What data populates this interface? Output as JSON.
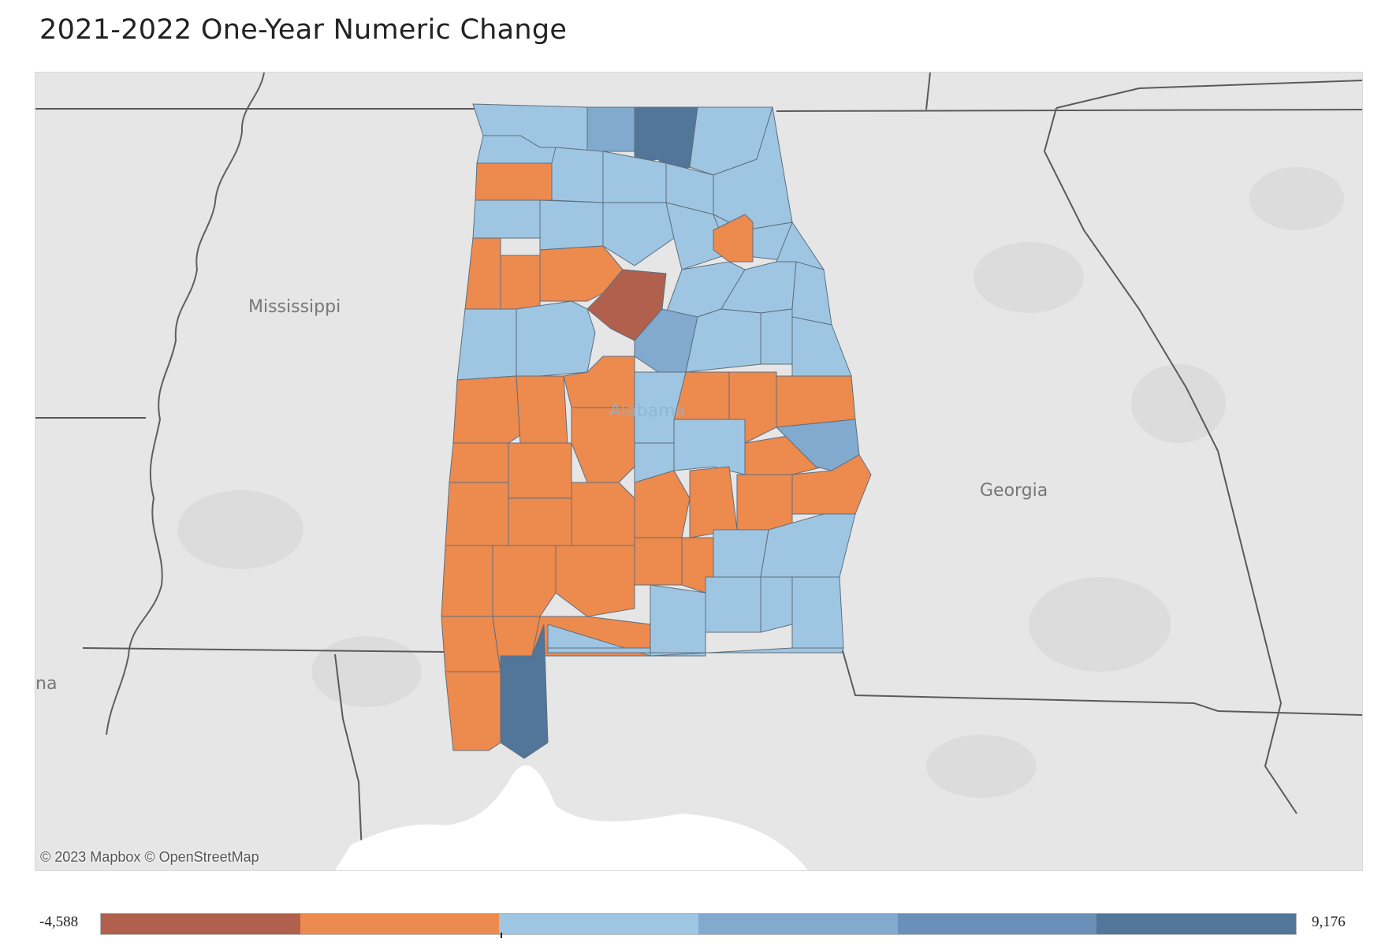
{
  "title": "2021-2022 One-Year Numeric Change",
  "map": {
    "labels": {
      "mississippi": "Mississippi",
      "georgia": "Georgia",
      "alabama": "Alabama",
      "louisiana_partial": "na"
    },
    "attribution": "© 2023 Mapbox © OpenStreetMap",
    "colors": {
      "background": "#e6e6e6",
      "land_patch": "#dcdcdc",
      "water": "#ffffff",
      "border": "#5a5a5a",
      "county_border": "#6e6e6e"
    }
  },
  "legend": {
    "min_label": "-4,588",
    "max_label": "9,176",
    "steps": [
      "#b0604c",
      "#ed8a4e",
      "#9ec6e2",
      "#82aacf",
      "#6a90b8",
      "#527699"
    ]
  }
}
